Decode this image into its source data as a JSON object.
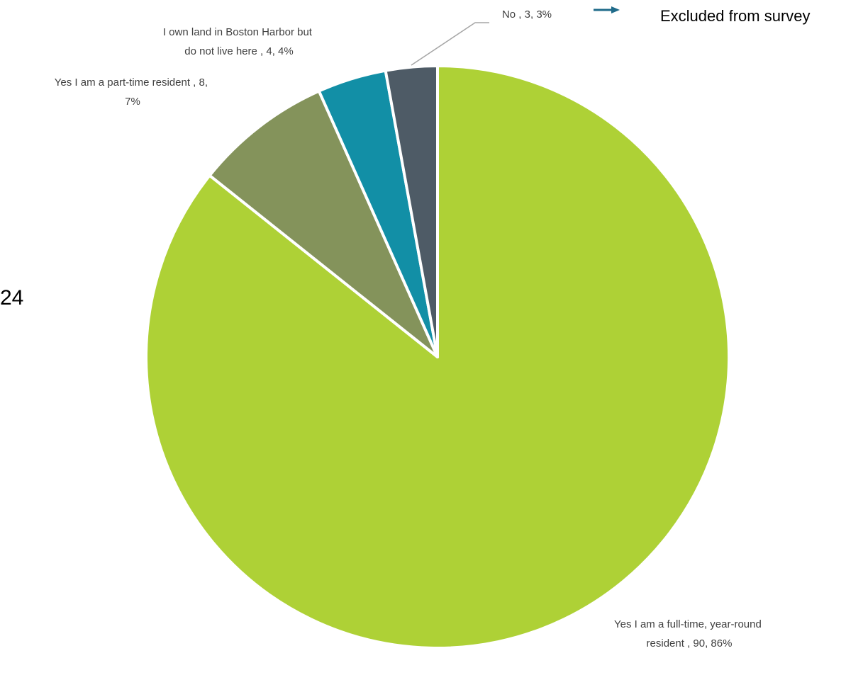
{
  "chart_data": {
    "type": "pie",
    "slices": [
      {
        "label": "Yes I am a full-time, year-round resident",
        "count": 90,
        "percent": "86%",
        "color": "#aed136"
      },
      {
        "label": "Yes I am a part-time resident",
        "count": 8,
        "percent": "7%",
        "color": "#84935b"
      },
      {
        "label": "I own land in Boston Harbor but do not live here",
        "count": 4,
        "percent": "4%",
        "color": "#128fa6"
      },
      {
        "label": "No",
        "count": 3,
        "percent": "3%",
        "color": "#4e5b66"
      }
    ],
    "data_labels": {
      "full_time": [
        "Yes I am a full-time, year-round",
        "resident  , 90, 86%"
      ],
      "part_time": [
        "Yes I am a part-time resident  , 8,",
        "7%"
      ],
      "own_land": [
        "I own land in Boston Harbor but",
        "do not live here  , 4, 4%"
      ],
      "no": [
        "No  , 3, 3%"
      ]
    },
    "annotation": {
      "text": "Excluded from survey",
      "arrow_color": "#1f6b8a"
    },
    "stray_text": "24",
    "slice_border_color": "#ffffff",
    "leader_line_color": "#a6a6a6"
  }
}
